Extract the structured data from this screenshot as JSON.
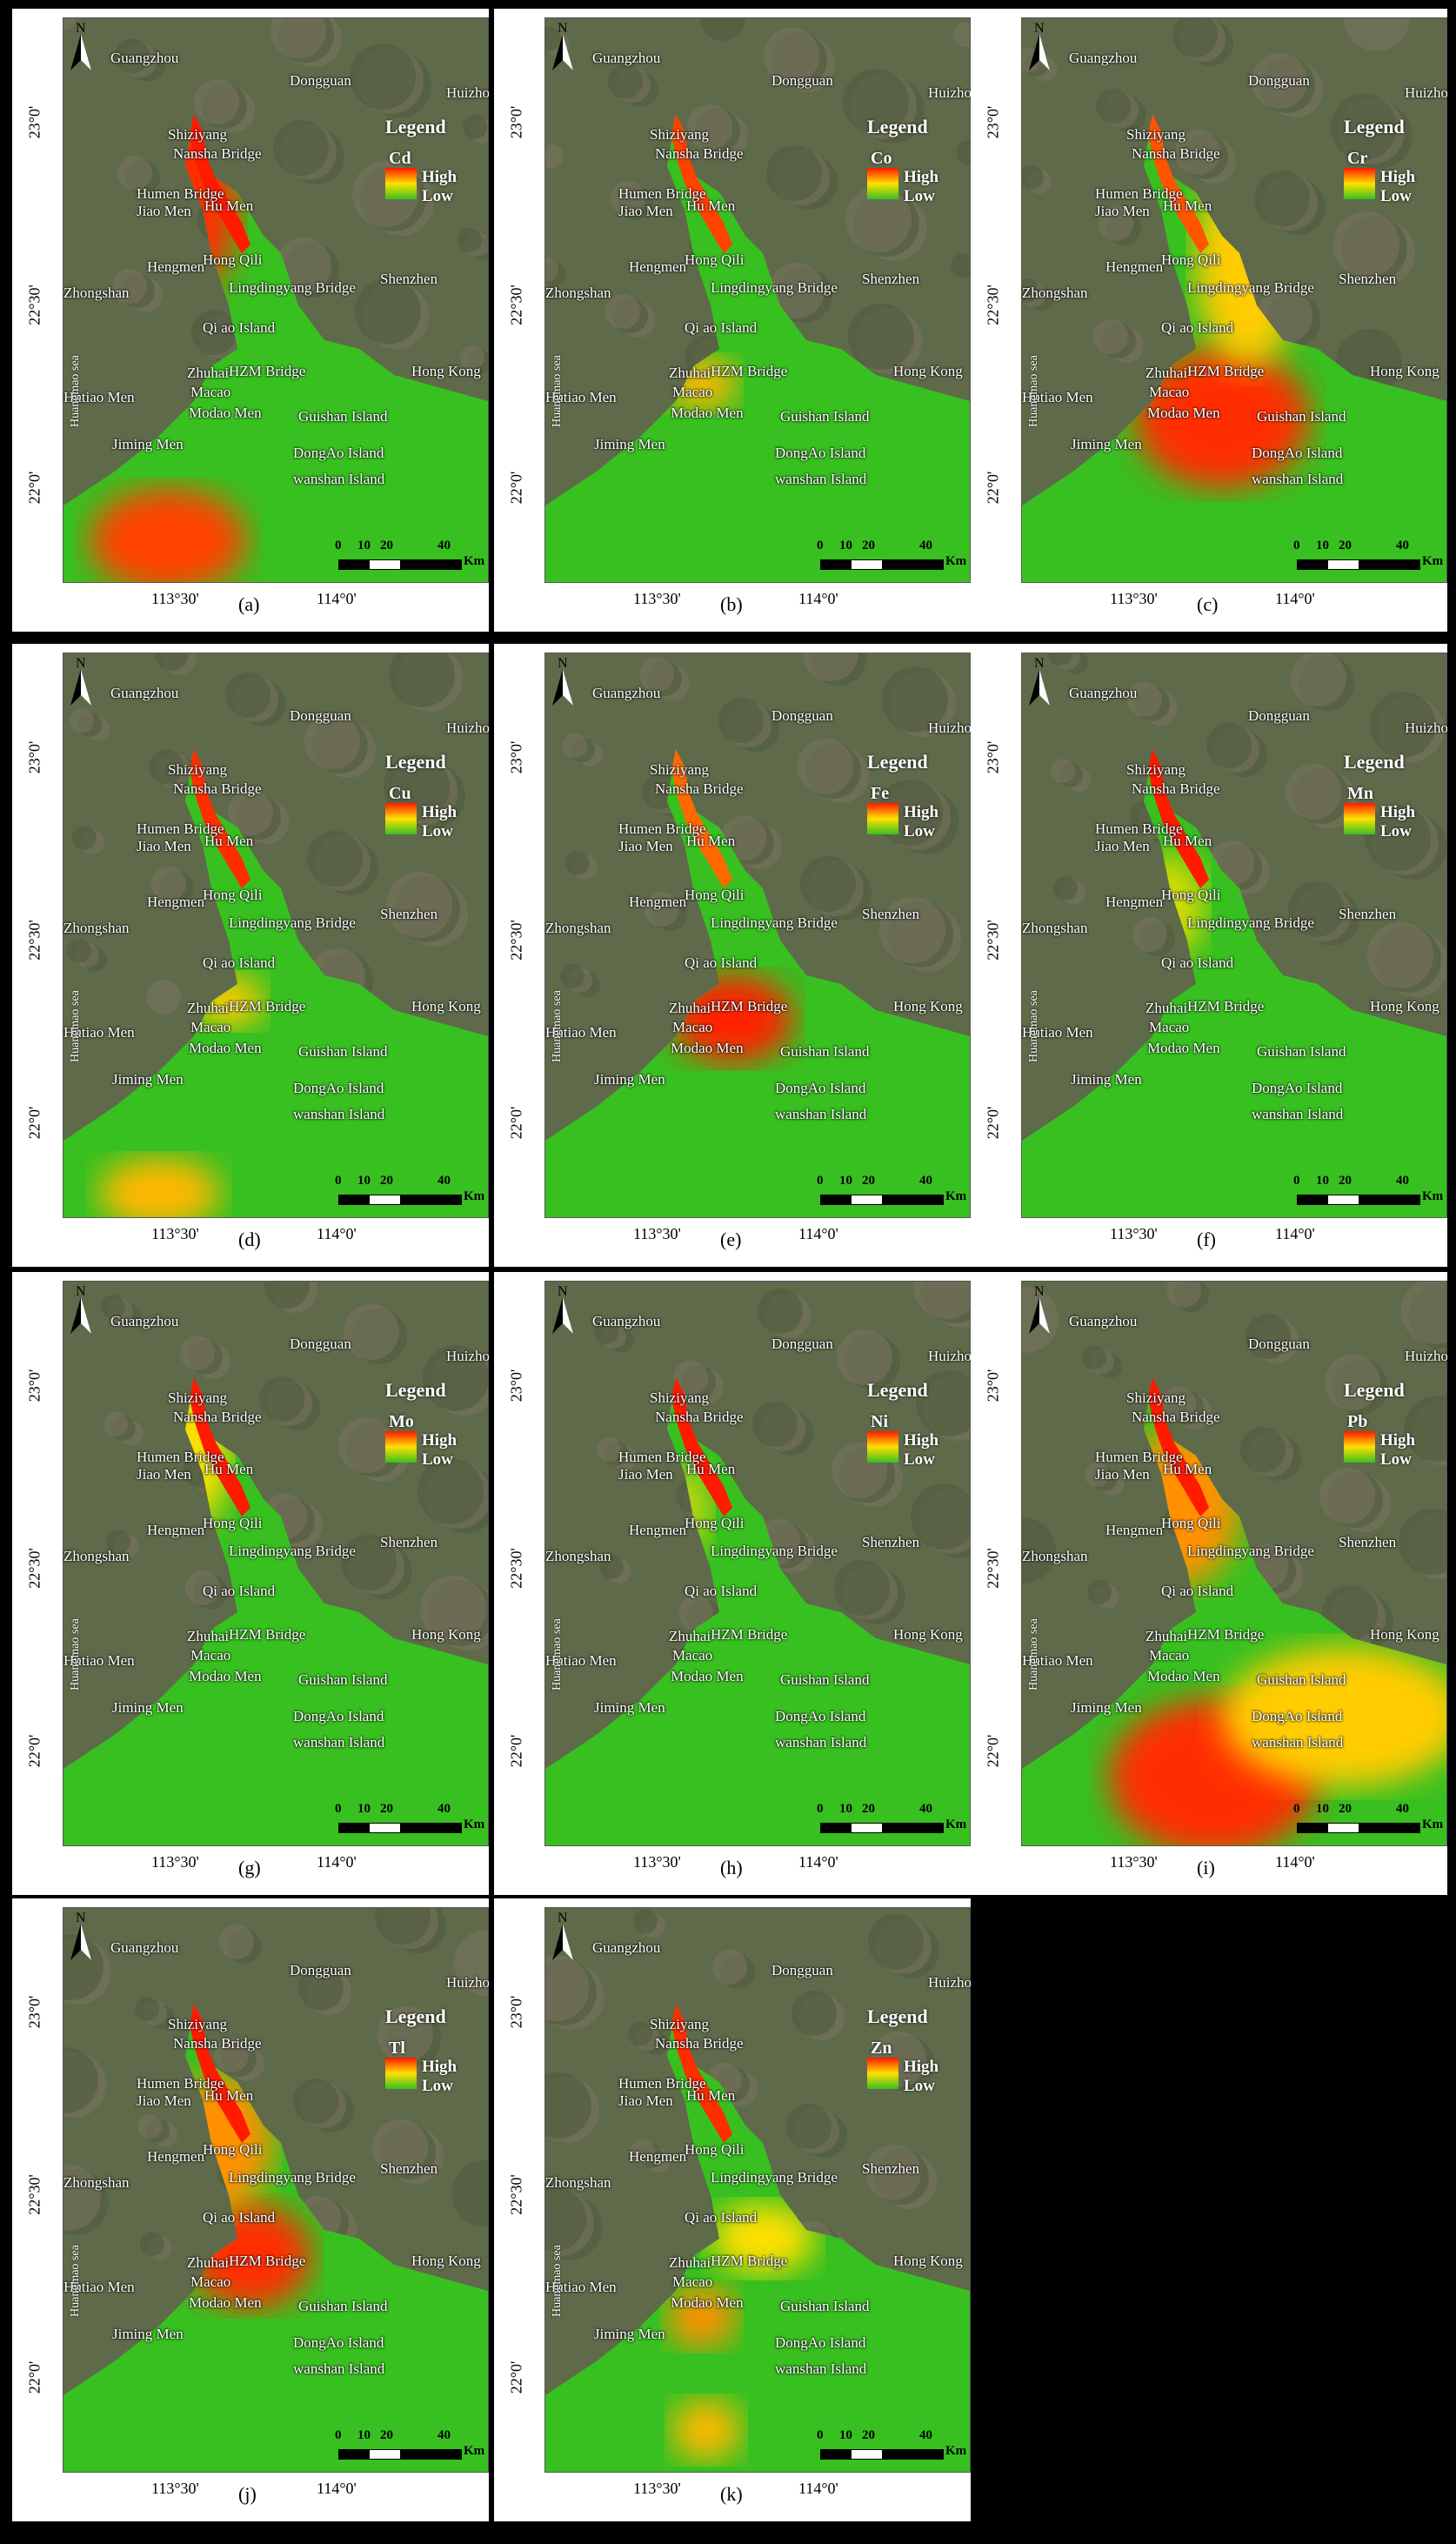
{
  "compass": {
    "label": "N"
  },
  "legend": {
    "title": "Legend",
    "high": "High",
    "low": "Low"
  },
  "scale": {
    "ticks": [
      "0",
      "10",
      "20",
      "40"
    ],
    "unit": "Km"
  },
  "sea_label": "Huangmao sea",
  "latitudes": [
    "23°0'",
    "22°30'",
    "22°0'"
  ],
  "longitudes": [
    "113°30'",
    "114°0'"
  ],
  "place_labels": [
    "Guangzhou",
    "Dongguan",
    "Huizhou",
    "Shiziyang",
    "Nansha Bridge",
    "Humen Bridge",
    "Hu Men",
    "Jiao Men",
    "Hengmen",
    "Hong Qili",
    "Shenzhen",
    "Zhongshan",
    "Lingdingyang Bridge",
    "Qi ao Island",
    "Zhuhai",
    "HZM Bridge",
    "Hong Kong",
    "Hutiao Men",
    "Macao",
    "Modao Men",
    "Guishan Island",
    "Jiming Men",
    "DongAo Island",
    "wanshan Island"
  ],
  "panels": [
    {
      "letter": "(a)",
      "element": "Cd"
    },
    {
      "letter": "(b)",
      "element": "Co"
    },
    {
      "letter": "(c)",
      "element": "Cr"
    },
    {
      "letter": "(d)",
      "element": "Cu"
    },
    {
      "letter": "(e)",
      "element": "Fe"
    },
    {
      "letter": "(f)",
      "element": "Mn"
    },
    {
      "letter": "(g)",
      "element": "Mo"
    },
    {
      "letter": "(h)",
      "element": "Ni"
    },
    {
      "letter": "(i)",
      "element": "Pb"
    },
    {
      "letter": "(j)",
      "element": "Tl"
    },
    {
      "letter": "(k)",
      "element": "Zn"
    }
  ],
  "colors": {
    "high": "#ff1a00",
    "mid": "#ffe000",
    "low": "#38c020",
    "land": "#5f6a4a"
  }
}
